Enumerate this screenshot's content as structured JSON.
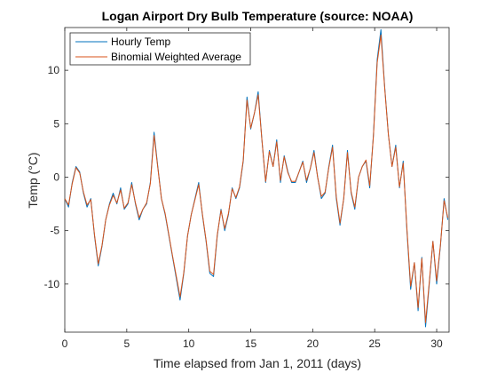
{
  "chart_data": {
    "type": "line",
    "title": "Logan Airport Dry Bulb Temperature (source: NOAA)",
    "xlabel": "Time elapsed from Jan 1, 2011 (days)",
    "ylabel": "Temp (°C)",
    "xlim": [
      0,
      31
    ],
    "ylim": [
      -14.5,
      14
    ],
    "xticks": [
      0,
      5,
      10,
      15,
      20,
      25,
      30
    ],
    "yticks": [
      -10,
      -5,
      0,
      5,
      10
    ],
    "legend_position": "top-left",
    "colors": {
      "hourly": "#0072BD",
      "average": "#D95319"
    },
    "series": [
      {
        "name": "Hourly Temp",
        "color": "#0072BD",
        "x": [
          0,
          0.3,
          0.6,
          0.9,
          1.2,
          1.5,
          1.8,
          2.1,
          2.4,
          2.7,
          3.0,
          3.3,
          3.6,
          3.9,
          4.2,
          4.5,
          4.8,
          5.1,
          5.4,
          5.7,
          6.0,
          6.3,
          6.6,
          6.9,
          7.2,
          7.5,
          7.8,
          8.1,
          8.4,
          8.7,
          9.0,
          9.3,
          9.6,
          9.9,
          10.2,
          10.5,
          10.8,
          11.1,
          11.4,
          11.7,
          12.0,
          12.3,
          12.6,
          12.9,
          13.2,
          13.5,
          13.8,
          14.1,
          14.4,
          14.7,
          15.0,
          15.3,
          15.6,
          15.9,
          16.2,
          16.5,
          16.8,
          17.1,
          17.4,
          17.7,
          18.0,
          18.3,
          18.6,
          18.9,
          19.2,
          19.5,
          19.8,
          20.1,
          20.4,
          20.7,
          21.0,
          21.3,
          21.6,
          21.9,
          22.2,
          22.5,
          22.8,
          23.1,
          23.4,
          23.7,
          24.0,
          24.3,
          24.6,
          24.9,
          25.2,
          25.5,
          25.8,
          26.1,
          26.4,
          26.7,
          27.0,
          27.3,
          27.6,
          27.9,
          28.2,
          28.5,
          28.8,
          29.1,
          29.4,
          29.7,
          30.0,
          30.3,
          30.6,
          30.9
        ],
        "y": [
          -2.0,
          -2.8,
          -0.5,
          1.0,
          0.5,
          -1.5,
          -2.8,
          -2.0,
          -5.5,
          -8.3,
          -6.5,
          -4.0,
          -2.5,
          -1.5,
          -2.5,
          -1.0,
          -3.0,
          -2.5,
          -0.5,
          -2.5,
          -4.0,
          -3.0,
          -2.5,
          -0.5,
          4.2,
          1.0,
          -2.0,
          -3.5,
          -5.5,
          -7.5,
          -9.5,
          -11.5,
          -9.0,
          -5.5,
          -3.5,
          -2.0,
          -0.5,
          -3.5,
          -6.0,
          -9.0,
          -9.3,
          -5.5,
          -3.0,
          -5.0,
          -3.5,
          -1.0,
          -2.0,
          -1.0,
          1.5,
          7.5,
          4.5,
          6.0,
          8.0,
          3.5,
          -0.5,
          2.5,
          1.0,
          3.5,
          -0.5,
          2.0,
          0.5,
          -0.5,
          -0.5,
          0.5,
          1.5,
          -0.5,
          0.8,
          2.5,
          0.0,
          -2.0,
          -1.5,
          1.0,
          3.0,
          -2.0,
          -4.5,
          -2.0,
          2.5,
          -1.5,
          -3.0,
          0.0,
          1.0,
          1.5,
          -1.0,
          4.0,
          11.0,
          13.8,
          8.5,
          4.0,
          1.0,
          3.0,
          -1.0,
          1.5,
          -5.0,
          -10.5,
          -8.0,
          -12.5,
          -7.5,
          -14.0,
          -10.0,
          -6.0,
          -10.0,
          -6.5,
          -2.0,
          -4.0
        ]
      },
      {
        "name": "Binomial Weighted Average",
        "color": "#D95319",
        "x": [
          0,
          0.3,
          0.6,
          0.9,
          1.2,
          1.5,
          1.8,
          2.1,
          2.4,
          2.7,
          3.0,
          3.3,
          3.6,
          3.9,
          4.2,
          4.5,
          4.8,
          5.1,
          5.4,
          5.7,
          6.0,
          6.3,
          6.6,
          6.9,
          7.2,
          7.5,
          7.8,
          8.1,
          8.4,
          8.7,
          9.0,
          9.3,
          9.6,
          9.9,
          10.2,
          10.5,
          10.8,
          11.1,
          11.4,
          11.7,
          12.0,
          12.3,
          12.6,
          12.9,
          13.2,
          13.5,
          13.8,
          14.1,
          14.4,
          14.7,
          15.0,
          15.3,
          15.6,
          15.9,
          16.2,
          16.5,
          16.8,
          17.1,
          17.4,
          17.7,
          18.0,
          18.3,
          18.6,
          18.9,
          19.2,
          19.5,
          19.8,
          20.1,
          20.4,
          20.7,
          21.0,
          21.3,
          21.6,
          21.9,
          22.2,
          22.5,
          22.8,
          23.1,
          23.4,
          23.7,
          24.0,
          24.3,
          24.6,
          24.9,
          25.2,
          25.5,
          25.8,
          26.1,
          26.4,
          26.7,
          27.0,
          27.3,
          27.6,
          27.9,
          28.2,
          28.5,
          28.8,
          29.1,
          29.4,
          29.7,
          30.0,
          30.3,
          30.6,
          30.9
        ],
        "y": [
          -2.0,
          -2.6,
          -0.6,
          0.9,
          0.4,
          -1.4,
          -2.6,
          -2.1,
          -5.4,
          -8.1,
          -6.4,
          -4.0,
          -2.6,
          -1.7,
          -2.4,
          -1.2,
          -2.9,
          -2.4,
          -0.7,
          -2.4,
          -3.8,
          -3.0,
          -2.4,
          -0.6,
          3.9,
          0.9,
          -2.0,
          -3.4,
          -5.4,
          -7.4,
          -9.3,
          -11.2,
          -8.9,
          -5.5,
          -3.5,
          -2.1,
          -0.7,
          -3.4,
          -5.9,
          -8.8,
          -9.1,
          -5.4,
          -3.1,
          -4.8,
          -3.4,
          -1.1,
          -1.9,
          -0.9,
          1.6,
          7.2,
          4.6,
          6.0,
          7.7,
          3.5,
          -0.4,
          2.4,
          1.0,
          3.3,
          -0.3,
          1.9,
          0.4,
          -0.4,
          -0.4,
          0.5,
          1.4,
          -0.3,
          0.8,
          2.3,
          0.0,
          -1.8,
          -1.4,
          0.9,
          2.8,
          -1.8,
          -4.3,
          -2.0,
          2.3,
          -1.4,
          -2.8,
          0.0,
          1.0,
          1.6,
          -0.8,
          3.9,
          10.7,
          13.3,
          8.4,
          4.0,
          1.0,
          2.8,
          -0.9,
          1.3,
          -4.8,
          -10.2,
          -8.0,
          -12.2,
          -7.6,
          -13.6,
          -9.8,
          -6.0,
          -9.7,
          -6.4,
          -2.2,
          -3.8
        ]
      }
    ]
  }
}
